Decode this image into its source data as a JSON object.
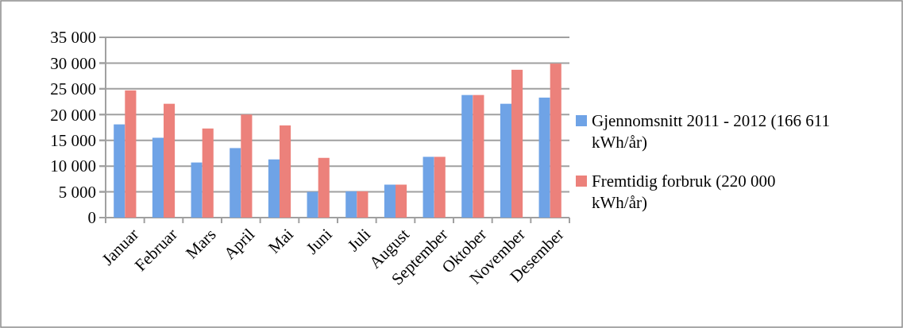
{
  "chart_data": {
    "type": "bar",
    "categories": [
      "Januar",
      "Februar",
      "Mars",
      "April",
      "Mai",
      "Juni",
      "Juli",
      "August",
      "September",
      "Oktober",
      "November",
      "Desember"
    ],
    "series": [
      {
        "name": "Gjennomsnitt 2011 - 2012 (166 611 kWh/år)",
        "color": "#6fa3e6",
        "values": [
          18100,
          15500,
          10700,
          13500,
          11300,
          5000,
          5100,
          6400,
          11800,
          23800,
          22100,
          23300
        ]
      },
      {
        "name": "Fremtidig forbruk (220 000 kWh/år)",
        "color": "#ec817b",
        "values": [
          24700,
          22100,
          17300,
          20000,
          17900,
          11600,
          5100,
          6400,
          11800,
          23800,
          28700,
          29900
        ]
      }
    ],
    "ylim": [
      0,
      35000
    ],
    "yticks": [
      {
        "value": 0,
        "label": "0"
      },
      {
        "value": 5000,
        "label": "5 000"
      },
      {
        "value": 10000,
        "label": "10 000"
      },
      {
        "value": 15000,
        "label": "15 000"
      },
      {
        "value": 20000,
        "label": "20 000"
      },
      {
        "value": 25000,
        "label": "25 000"
      },
      {
        "value": 30000,
        "label": "30 000"
      },
      {
        "value": 35000,
        "label": "35 000"
      }
    ],
    "grid": "y",
    "legend": "right"
  }
}
